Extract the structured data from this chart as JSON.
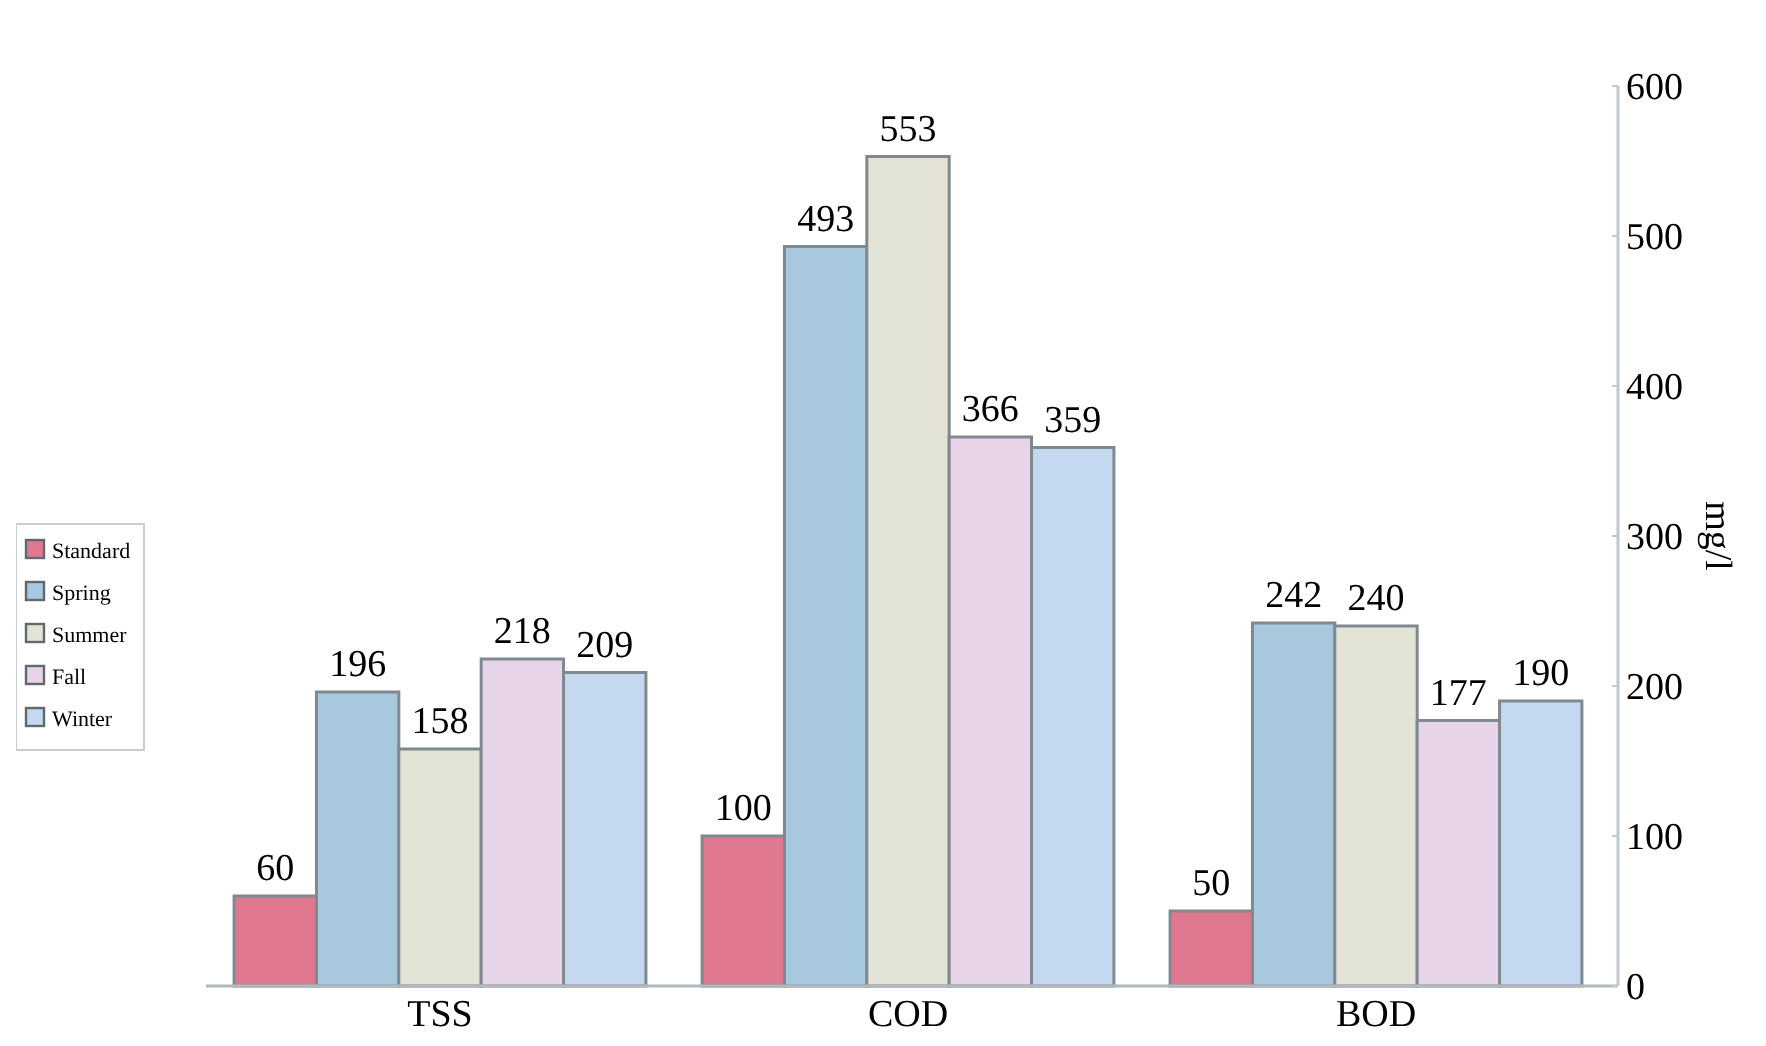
{
  "chart_data": {
    "type": "bar",
    "ylabel": "mg/l",
    "categories": [
      "TSS",
      "COD",
      "BOD"
    ],
    "series": [
      {
        "name": "Standard",
        "color": "#e07890",
        "values": [
          60,
          100,
          50
        ]
      },
      {
        "name": "Spring",
        "color": "#a8c8de",
        "values": [
          196,
          493,
          242
        ]
      },
      {
        "name": "Summer",
        "color": "#e4e4d6",
        "values": [
          158,
          553,
          240
        ]
      },
      {
        "name": "Fall",
        "color": "#e8d4e8",
        "values": [
          218,
          366,
          177
        ]
      },
      {
        "name": "Winter",
        "color": "#c4d8f0",
        "values": [
          209,
          359,
          190
        ]
      }
    ],
    "ylim": [
      0,
      600
    ],
    "yticks": [
      0,
      100,
      200,
      300,
      400,
      500,
      600
    ],
    "data_labels": true,
    "legend": "left",
    "grid": false
  }
}
